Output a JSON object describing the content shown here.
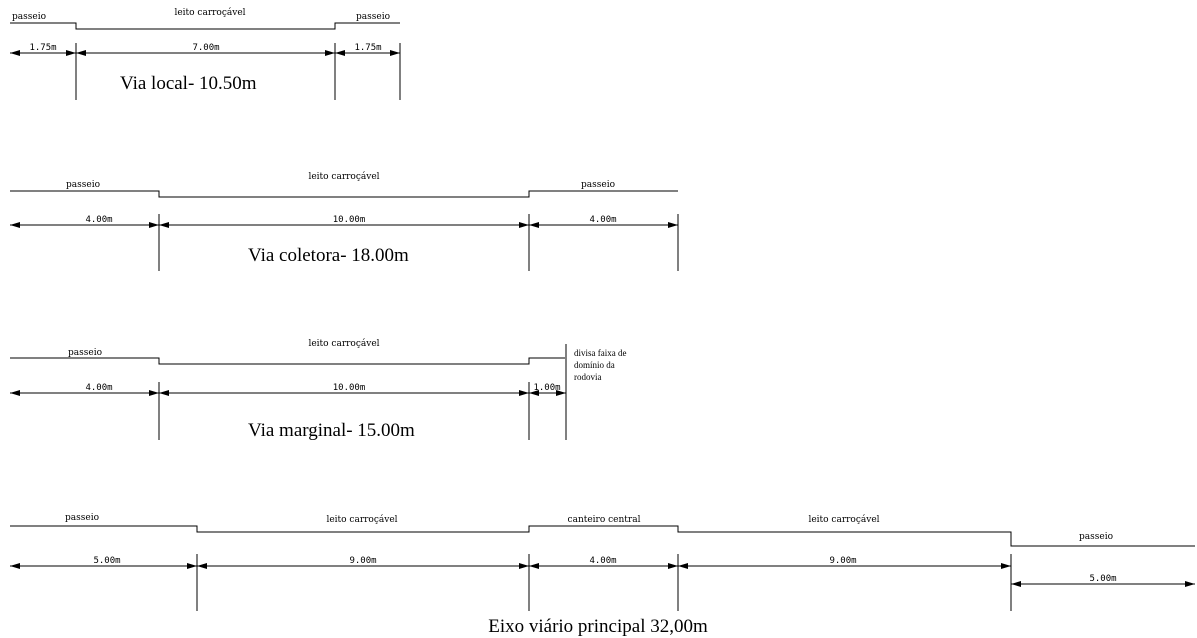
{
  "sections": [
    {
      "id": "via-local",
      "title": "Via local- 10.50m",
      "labels": [
        "passeio",
        "leito carroçável",
        "passeio"
      ],
      "dimensions": [
        "1.75m",
        "7.00m",
        "1.75m"
      ]
    },
    {
      "id": "via-coletora",
      "title": "Via coletora- 18.00m",
      "labels": [
        "passeio",
        "leito carroçável",
        "passeio"
      ],
      "dimensions": [
        "4.00m",
        "10.00m",
        "4.00m"
      ]
    },
    {
      "id": "via-marginal",
      "title": "Via marginal- 15.00m",
      "labels": [
        "passeio",
        "leito carroçável"
      ],
      "dimensions": [
        "4.00m",
        "10.00m",
        "1.00m"
      ],
      "note": [
        "divisa faixa de",
        "domínio da",
        "rodovia"
      ]
    },
    {
      "id": "eixo-viario",
      "title": "Eixo viário principal 32,00m",
      "labels": [
        "passeio",
        "leito carroçável",
        "canteiro central",
        "leito carroçável",
        "passeio"
      ],
      "dimensions": [
        "5.00m",
        "9.00m",
        "4.00m",
        "9.00m",
        "5.00m"
      ]
    }
  ]
}
